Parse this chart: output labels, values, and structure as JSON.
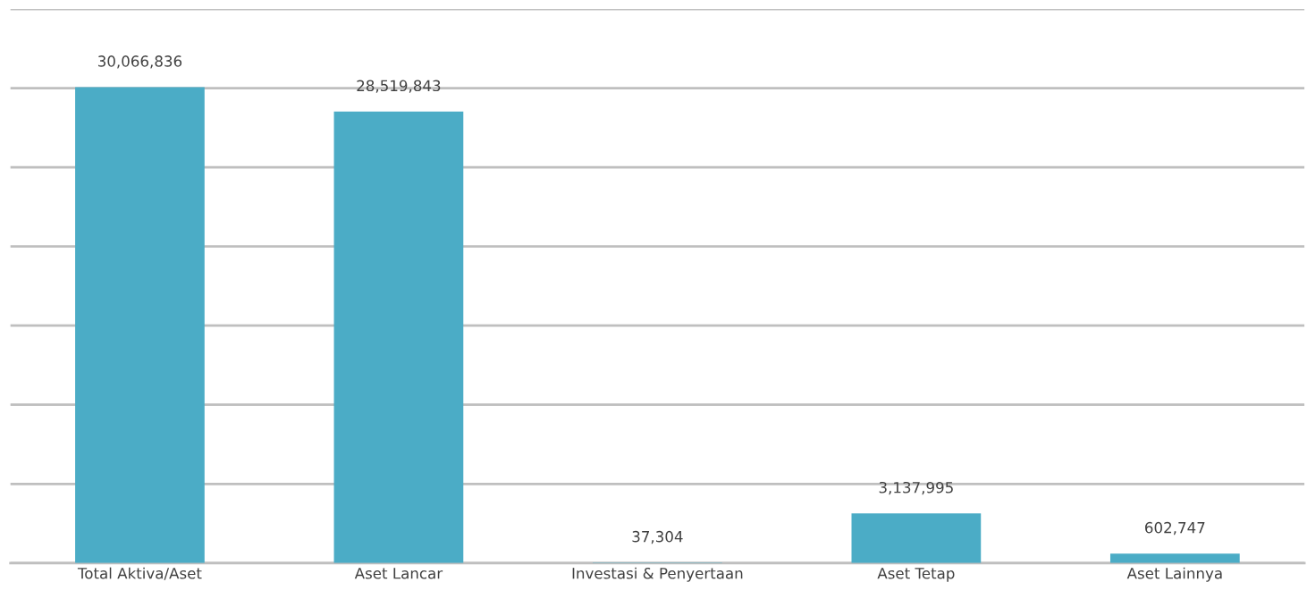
{
  "chart_data": {
    "type": "bar",
    "categories": [
      "Total Aktiva/Aset",
      "Aset Lancar",
      "Investasi & Penyertaan",
      "Aset Tetap",
      "Aset Lainnya"
    ],
    "values": [
      30066836,
      28519843,
      37304,
      3137995,
      602747
    ],
    "value_labels": [
      "30,066,836",
      "28,519,843",
      "37,304",
      "3,137,995",
      "602,747"
    ],
    "color": "#4bacc6",
    "ylim": [
      0,
      35000000
    ],
    "yticks": [
      {
        "value": 0,
        "label": null
      },
      {
        "value": 5000000,
        "label": null
      },
      {
        "value": 10000000,
        "label": null
      },
      {
        "value": 15000000,
        "label": null
      },
      {
        "value": 20000000,
        "label": null
      },
      {
        "value": 25000000,
        "label": null
      },
      {
        "value": 30000000,
        "label": null
      },
      {
        "value": 35000000,
        "label": null
      }
    ],
    "grid": "y",
    "tick_labels": "x"
  }
}
